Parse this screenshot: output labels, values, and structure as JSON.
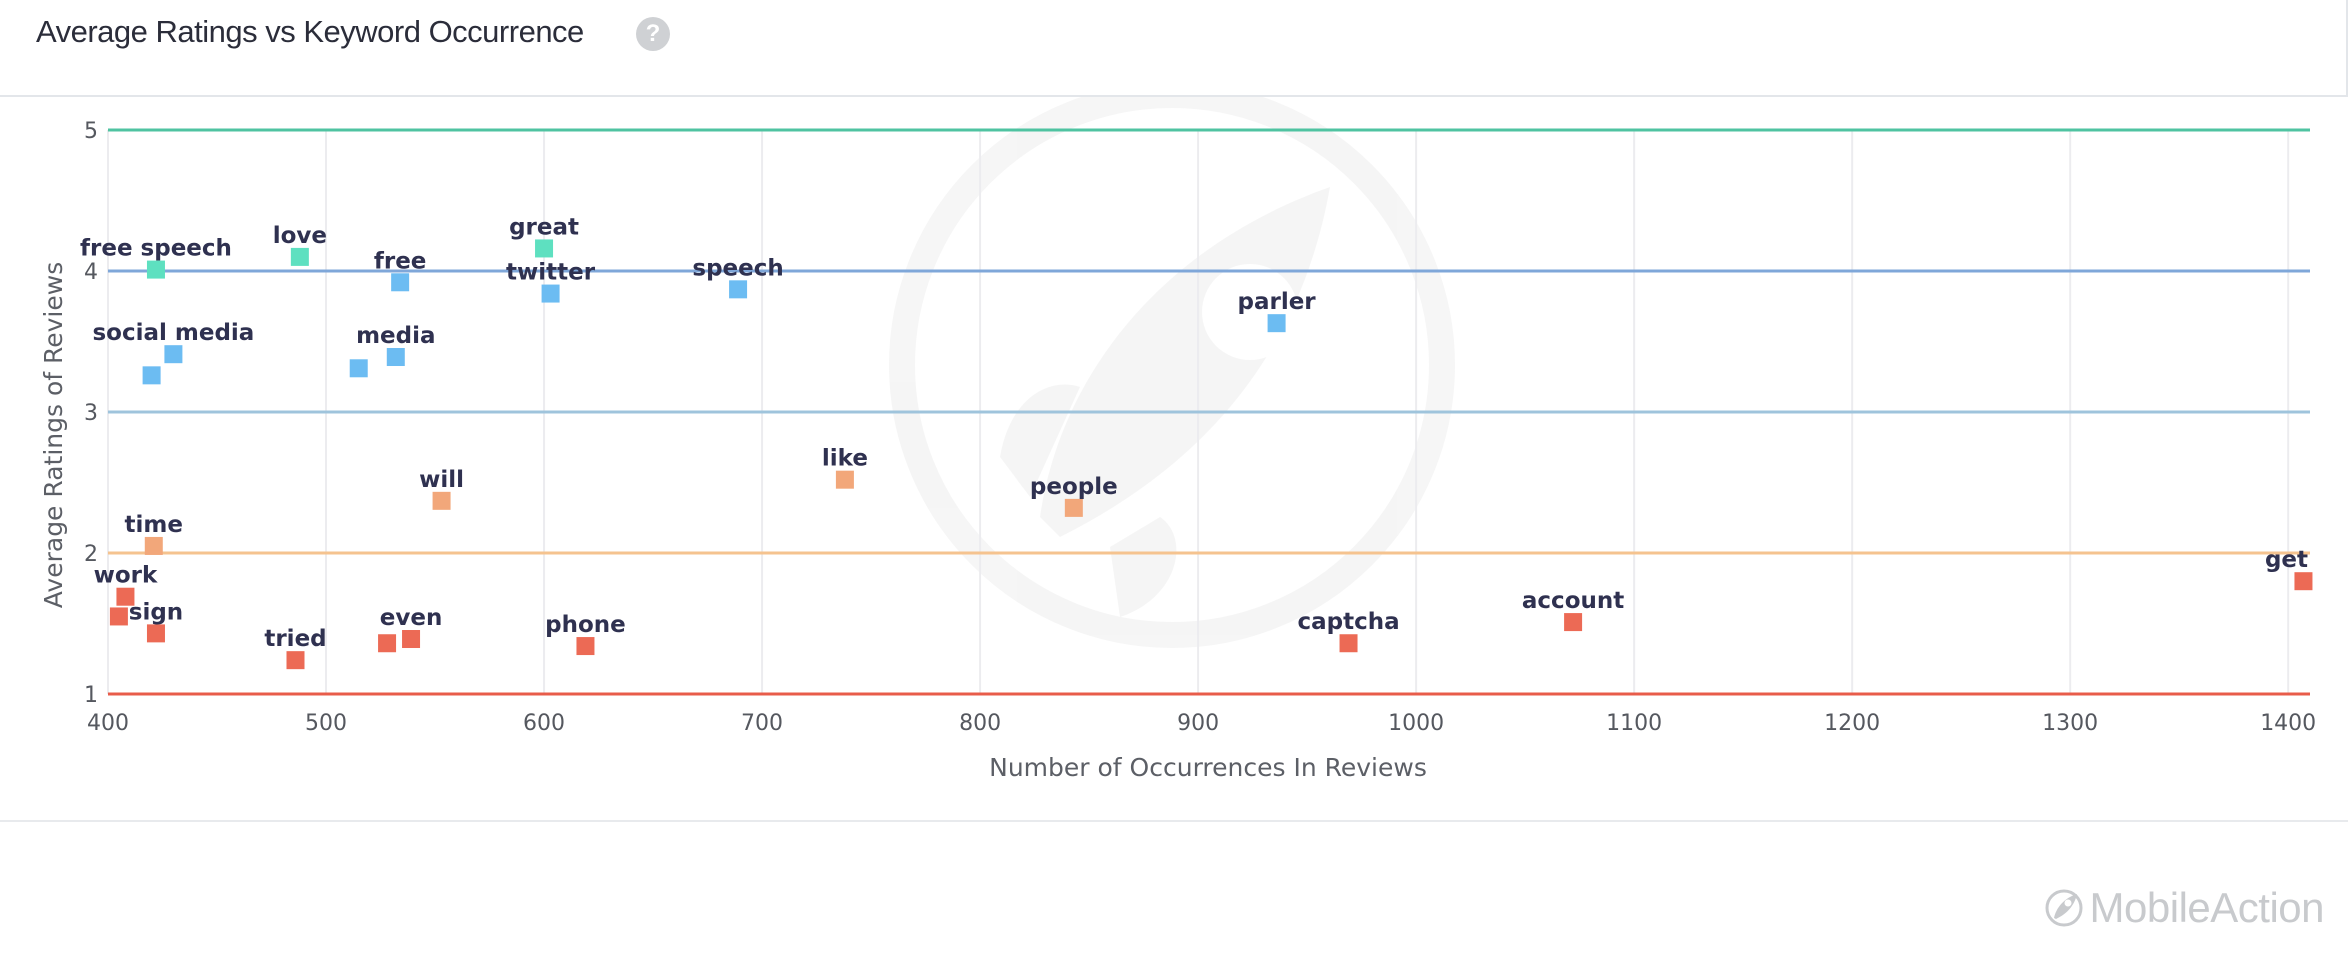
{
  "header": {
    "title": "Average Ratings vs Keyword Occurrence",
    "help_glyph": "?"
  },
  "brand": {
    "name": "MobileAction"
  },
  "colors": {
    "band_5": "#4fc3a1",
    "band_4": "#7fa7d9",
    "band_3": "#9fc4dc",
    "band_2": "#f5c38f",
    "band_1": "#e85c4a",
    "grid": "#ececef",
    "point_teal": "#5ee0c0",
    "point_blue": "#6cbcf2",
    "point_orange": "#f2a77a",
    "point_red": "#ec6a55"
  },
  "chart_data": {
    "type": "scatter",
    "xlabel": "Number of Occurrences In Reviews",
    "ylabel": "Average Ratings of Reviews",
    "xlim": [
      400,
      1410
    ],
    "ylim": [
      1,
      5
    ],
    "xticks": [
      400,
      500,
      600,
      700,
      800,
      900,
      1000,
      1100,
      1200,
      1300,
      1400
    ],
    "yticks": [
      1,
      2,
      3,
      4,
      5
    ],
    "grid": true,
    "legend": "none",
    "points": [
      {
        "label": "free speech",
        "x": 422,
        "y": 4.01,
        "color": "teal"
      },
      {
        "label": "love",
        "x": 488,
        "y": 4.1,
        "color": "teal"
      },
      {
        "label": "great",
        "x": 600,
        "y": 4.16,
        "color": "teal"
      },
      {
        "label": "free",
        "x": 534,
        "y": 3.92,
        "color": "blue"
      },
      {
        "label": "twitter",
        "x": 603,
        "y": 3.84,
        "color": "blue"
      },
      {
        "label": "speech",
        "x": 689,
        "y": 3.87,
        "color": "blue"
      },
      {
        "label": "parler",
        "x": 936,
        "y": 3.63,
        "color": "blue"
      },
      {
        "label": "social media",
        "x": 430,
        "y": 3.41,
        "color": "blue"
      },
      {
        "label": "",
        "x": 420,
        "y": 3.26,
        "color": "blue"
      },
      {
        "label": "media",
        "x": 532,
        "y": 3.39,
        "color": "blue"
      },
      {
        "label": "",
        "x": 515,
        "y": 3.31,
        "color": "blue"
      },
      {
        "label": "will",
        "x": 553,
        "y": 2.37,
        "color": "orange"
      },
      {
        "label": "like",
        "x": 738,
        "y": 2.52,
        "color": "orange"
      },
      {
        "label": "people",
        "x": 843,
        "y": 2.32,
        "color": "orange"
      },
      {
        "label": "time",
        "x": 421,
        "y": 2.05,
        "color": "orange"
      },
      {
        "label": "work",
        "x": 408,
        "y": 1.69,
        "color": "red"
      },
      {
        "label": "",
        "x": 405,
        "y": 1.55,
        "color": "red"
      },
      {
        "label": "sign",
        "x": 422,
        "y": 1.43,
        "color": "red"
      },
      {
        "label": "tried",
        "x": 486,
        "y": 1.24,
        "color": "red"
      },
      {
        "label": "",
        "x": 528,
        "y": 1.36,
        "color": "red"
      },
      {
        "label": "even",
        "x": 539,
        "y": 1.39,
        "color": "red"
      },
      {
        "label": "phone",
        "x": 619,
        "y": 1.34,
        "color": "red"
      },
      {
        "label": "captcha",
        "x": 969,
        "y": 1.36,
        "color": "red"
      },
      {
        "label": "account",
        "x": 1072,
        "y": 1.51,
        "color": "red"
      },
      {
        "label": "get",
        "x": 1407,
        "y": 1.8,
        "color": "red"
      }
    ]
  }
}
